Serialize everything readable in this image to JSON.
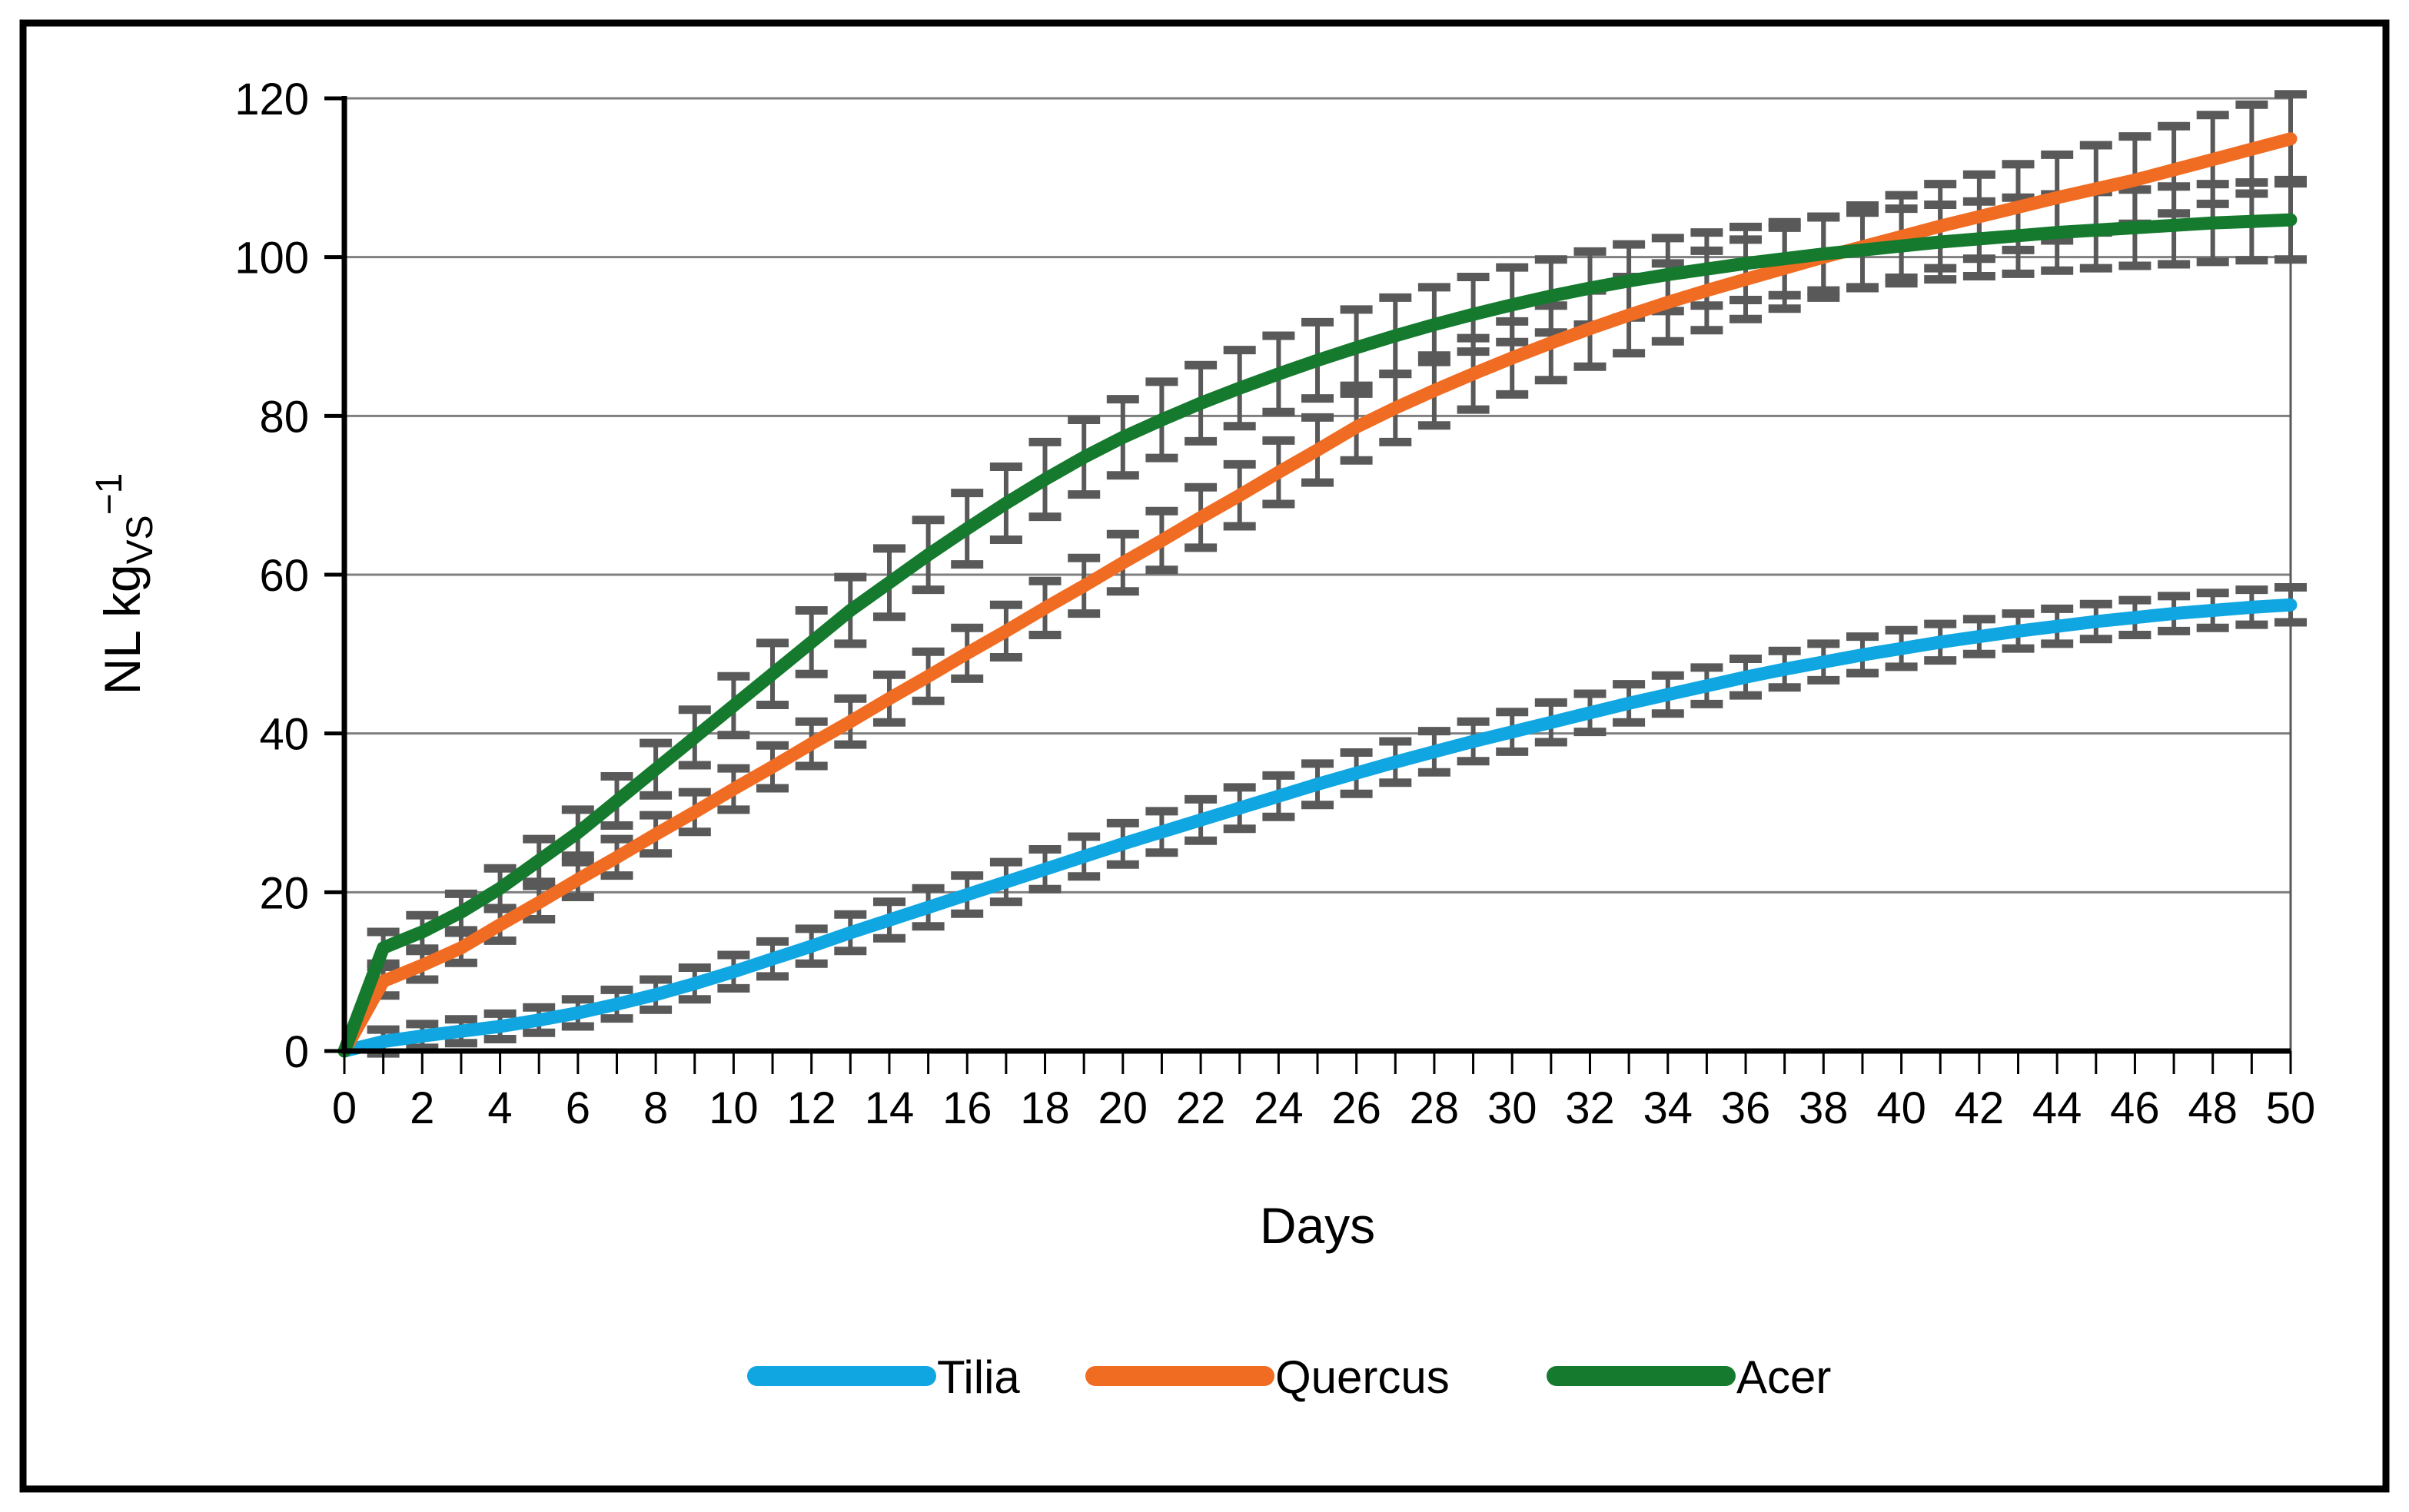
{
  "figure": {
    "background": "#FFFFFF",
    "border_color": "#000000"
  },
  "chart_data": {
    "type": "line",
    "title": "",
    "xlabel": "Days",
    "ylabel": "NL kg_VS^-1",
    "ylabel_main": "NL kg",
    "ylabel_sub": "VS",
    "ylabel_sup": "−1",
    "xlim": [
      0,
      50
    ],
    "ylim": [
      0,
      120
    ],
    "grid": "horizontal",
    "grid_color": "#7F7F7F",
    "axis_color": "#000000",
    "error_bars": true,
    "error_bar_color": "#595959",
    "legend_position": "bottom",
    "y_ticks": [
      0,
      20,
      40,
      60,
      80,
      100,
      120
    ],
    "x_tick_labels": [
      0,
      2,
      4,
      6,
      8,
      10,
      12,
      14,
      16,
      18,
      20,
      22,
      24,
      26,
      28,
      30,
      32,
      34,
      36,
      38,
      40,
      42,
      44,
      46,
      48,
      50
    ],
    "x": [
      0,
      1,
      2,
      3,
      4,
      5,
      6,
      7,
      8,
      9,
      10,
      11,
      12,
      13,
      14,
      15,
      16,
      17,
      18,
      19,
      20,
      21,
      22,
      23,
      24,
      25,
      26,
      27,
      28,
      29,
      30,
      31,
      32,
      33,
      34,
      35,
      36,
      37,
      38,
      39,
      40,
      41,
      42,
      43,
      44,
      45,
      46,
      47,
      48,
      49,
      50
    ],
    "series": [
      {
        "name": "Tilia",
        "color": "#0FA6E2",
        "values": [
          0,
          1.2,
          1.9,
          2.5,
          3.1,
          3.9,
          4.8,
          5.9,
          7.1,
          8.5,
          10.0,
          11.6,
          13.2,
          14.9,
          16.5,
          18.1,
          19.7,
          21.3,
          22.9,
          24.5,
          26.1,
          27.6,
          29.1,
          30.6,
          32.1,
          33.6,
          35.0,
          36.4,
          37.7,
          39.0,
          40.2,
          41.4,
          42.6,
          43.8,
          44.9,
          46.0,
          47.1,
          48.1,
          49.0,
          49.9,
          50.7,
          51.5,
          52.2,
          52.9,
          53.5,
          54.1,
          54.6,
          55.1,
          55.5,
          55.9,
          56.2
        ],
        "errors": [
          0,
          1.5,
          1.5,
          1.5,
          1.6,
          1.6,
          1.7,
          1.8,
          1.9,
          2.0,
          2.1,
          2.2,
          2.2,
          2.3,
          2.3,
          2.4,
          2.4,
          2.5,
          2.5,
          2.5,
          2.6,
          2.6,
          2.6,
          2.6,
          2.6,
          2.6,
          2.6,
          2.6,
          2.6,
          2.5,
          2.5,
          2.5,
          2.4,
          2.4,
          2.4,
          2.3,
          2.3,
          2.3,
          2.3,
          2.3,
          2.3,
          2.3,
          2.2,
          2.2,
          2.2,
          2.2,
          2.2,
          2.2,
          2.2,
          2.2,
          2.2
        ]
      },
      {
        "name": "Quercus",
        "color": "#F16C23",
        "values": [
          0,
          8.8,
          10.8,
          13.0,
          15.9,
          18.7,
          21.6,
          24.4,
          27.3,
          30.1,
          33.0,
          35.8,
          38.7,
          41.5,
          44.4,
          47.2,
          50.1,
          52.9,
          55.8,
          58.6,
          61.5,
          64.3,
          67.2,
          70.0,
          72.9,
          75.7,
          78.6,
          81.0,
          83.2,
          85.3,
          87.3,
          89.2,
          91.0,
          92.7,
          94.3,
          95.8,
          97.2,
          98.6,
          100.0,
          101.3,
          102.6,
          103.9,
          105.1,
          106.3,
          107.5,
          108.6,
          109.7,
          111.0,
          112.3,
          113.6,
          114.9
        ],
        "errors": [
          0,
          1.8,
          1.8,
          1.9,
          2.0,
          2.1,
          2.2,
          2.3,
          2.4,
          2.5,
          2.6,
          2.7,
          2.8,
          2.9,
          3.0,
          3.1,
          3.2,
          3.3,
          3.4,
          3.5,
          3.6,
          3.7,
          3.8,
          3.9,
          4.0,
          4.1,
          4.2,
          4.3,
          4.4,
          4.5,
          4.6,
          4.7,
          4.8,
          4.8,
          4.9,
          5.0,
          5.0,
          5.1,
          5.1,
          5.2,
          5.2,
          5.3,
          5.3,
          5.4,
          5.4,
          5.5,
          5.5,
          5.5,
          5.6,
          5.6,
          5.6
        ]
      },
      {
        "name": "Acer",
        "color": "#157A2E",
        "values": [
          0,
          13.0,
          15.0,
          17.5,
          20.5,
          24.0,
          27.5,
          31.5,
          35.5,
          39.5,
          43.5,
          47.5,
          51.5,
          55.5,
          59.0,
          62.5,
          65.8,
          69.0,
          72.0,
          74.8,
          77.3,
          79.5,
          81.6,
          83.5,
          85.3,
          87.0,
          88.6,
          90.1,
          91.5,
          92.8,
          94.0,
          95.1,
          96.1,
          97.0,
          97.8,
          98.5,
          99.2,
          99.8,
          100.4,
          100.9,
          101.4,
          101.9,
          102.3,
          102.7,
          103.1,
          103.4,
          103.7,
          104.0,
          104.3,
          104.5,
          104.7
        ],
        "errors": [
          0,
          2.0,
          2.1,
          2.3,
          2.5,
          2.7,
          2.9,
          3.1,
          3.3,
          3.5,
          3.7,
          3.9,
          4.0,
          4.2,
          4.3,
          4.4,
          4.5,
          4.6,
          4.7,
          4.7,
          4.8,
          4.8,
          4.8,
          4.8,
          4.8,
          4.8,
          4.8,
          4.8,
          4.7,
          4.7,
          4.7,
          4.6,
          4.6,
          4.6,
          4.6,
          4.6,
          4.6,
          4.6,
          4.6,
          4.7,
          4.7,
          4.7,
          4.7,
          4.8,
          4.8,
          4.8,
          4.8,
          4.9,
          4.9,
          4.9,
          5.0
        ]
      }
    ]
  }
}
